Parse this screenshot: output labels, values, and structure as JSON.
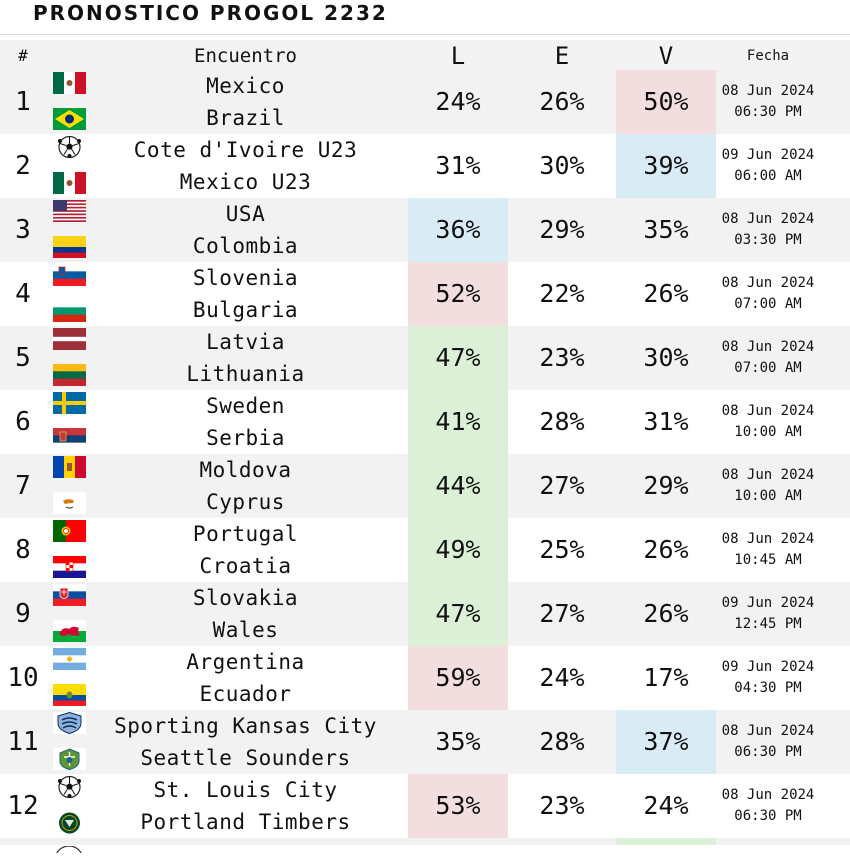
{
  "title": "PRONOSTICO PROGOL 2232",
  "header": {
    "num": "#",
    "encuentro": "Encuentro",
    "l": "L",
    "e": "E",
    "v": "V",
    "fecha": "Fecha"
  },
  "colors": {
    "highlight_red": "#f2dedf",
    "highlight_blue": "#d9ecf6",
    "highlight_green": "#dcf0d8",
    "row_alt": "#f2f2f2"
  },
  "matches": [
    {
      "num": "1",
      "home": "Mexico",
      "away": "Brazil",
      "home_icon": "mexico-flag-icon",
      "away_icon": "brazil-flag-icon",
      "l": "24%",
      "e": "26%",
      "v": "50%",
      "date": "08 Jun 2024",
      "time": "06:30 PM",
      "highlight": {
        "col": "v",
        "color": "red"
      }
    },
    {
      "num": "2",
      "home": "Cote d'Ivoire U23",
      "away": "Mexico U23",
      "home_icon": "soccer-ball-icon",
      "away_icon": "mexico-flag-icon",
      "l": "31%",
      "e": "30%",
      "v": "39%",
      "date": "09 Jun 2024",
      "time": "06:00 AM",
      "highlight": {
        "col": "v",
        "color": "blue"
      }
    },
    {
      "num": "3",
      "home": "USA",
      "away": "Colombia",
      "home_icon": "usa-flag-icon",
      "away_icon": "colombia-flag-icon",
      "l": "36%",
      "e": "29%",
      "v": "35%",
      "date": "08 Jun 2024",
      "time": "03:30 PM",
      "highlight": {
        "col": "l",
        "color": "blue"
      }
    },
    {
      "num": "4",
      "home": "Slovenia",
      "away": "Bulgaria",
      "home_icon": "slovenia-flag-icon",
      "away_icon": "bulgaria-flag-icon",
      "l": "52%",
      "e": "22%",
      "v": "26%",
      "date": "08 Jun 2024",
      "time": "07:00 AM",
      "highlight": {
        "col": "l",
        "color": "red"
      }
    },
    {
      "num": "5",
      "home": "Latvia",
      "away": "Lithuania",
      "home_icon": "latvia-flag-icon",
      "away_icon": "lithuania-flag-icon",
      "l": "47%",
      "e": "23%",
      "v": "30%",
      "date": "08 Jun 2024",
      "time": "07:00 AM",
      "highlight": {
        "col": "l",
        "color": "green"
      }
    },
    {
      "num": "6",
      "home": "Sweden",
      "away": "Serbia",
      "home_icon": "sweden-flag-icon",
      "away_icon": "serbia-flag-icon",
      "l": "41%",
      "e": "28%",
      "v": "31%",
      "date": "08 Jun 2024",
      "time": "10:00 AM",
      "highlight": {
        "col": "l",
        "color": "green"
      }
    },
    {
      "num": "7",
      "home": "Moldova",
      "away": "Cyprus",
      "home_icon": "moldova-flag-icon",
      "away_icon": "cyprus-flag-icon",
      "l": "44%",
      "e": "27%",
      "v": "29%",
      "date": "08 Jun 2024",
      "time": "10:00 AM",
      "highlight": {
        "col": "l",
        "color": "green"
      }
    },
    {
      "num": "8",
      "home": "Portugal",
      "away": "Croatia",
      "home_icon": "portugal-flag-icon",
      "away_icon": "croatia-flag-icon",
      "l": "49%",
      "e": "25%",
      "v": "26%",
      "date": "08 Jun 2024",
      "time": "10:45 AM",
      "highlight": {
        "col": "l",
        "color": "green"
      }
    },
    {
      "num": "9",
      "home": "Slovakia",
      "away": "Wales",
      "home_icon": "slovakia-flag-icon",
      "away_icon": "wales-flag-icon",
      "l": "47%",
      "e": "27%",
      "v": "26%",
      "date": "09 Jun 2024",
      "time": "12:45 PM",
      "highlight": {
        "col": "l",
        "color": "green"
      }
    },
    {
      "num": "10",
      "home": "Argentina",
      "away": "Ecuador",
      "home_icon": "argentina-flag-icon",
      "away_icon": "ecuador-flag-icon",
      "l": "59%",
      "e": "24%",
      "v": "17%",
      "date": "09 Jun 2024",
      "time": "04:30 PM",
      "highlight": {
        "col": "l",
        "color": "red"
      }
    },
    {
      "num": "11",
      "home": "Sporting Kansas City",
      "away": "Seattle Sounders",
      "home_icon": "sporting-kc-crest-icon",
      "away_icon": "seattle-sounders-crest-icon",
      "l": "35%",
      "e": "28%",
      "v": "37%",
      "date": "08 Jun 2024",
      "time": "06:30 PM",
      "highlight": {
        "col": "v",
        "color": "blue"
      }
    },
    {
      "num": "12",
      "home": "St. Louis City",
      "away": "Portland Timbers",
      "home_icon": "soccer-ball-icon",
      "away_icon": "portland-timbers-crest-icon",
      "l": "53%",
      "e": "23%",
      "v": "24%",
      "date": "08 Jun 2024",
      "time": "06:30 PM",
      "highlight": {
        "col": "l",
        "color": "red"
      }
    }
  ]
}
